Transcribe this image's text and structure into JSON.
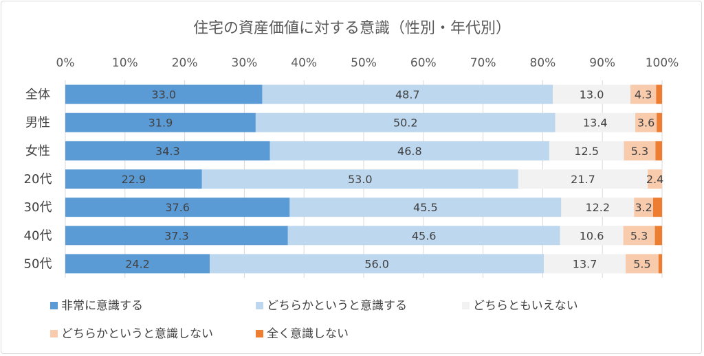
{
  "chart_data": {
    "type": "bar",
    "orientation": "horizontal",
    "stacked": "percent",
    "title": "住宅の資産価値に対する意識（性別・年代別）",
    "x_ticks": [
      "0%",
      "10%",
      "20%",
      "30%",
      "40%",
      "50%",
      "60%",
      "70%",
      "80%",
      "90%",
      "100%"
    ],
    "xlim": [
      0,
      100
    ],
    "grid": true,
    "legend_position": "bottom",
    "categories": [
      "全体",
      "男性",
      "女性",
      "20代",
      "30代",
      "40代",
      "50代"
    ],
    "series": [
      {
        "name": "非常に意識する",
        "color": "#5b9bd5",
        "values": [
          33.0,
          31.9,
          34.3,
          22.9,
          37.6,
          37.3,
          24.2
        ],
        "labels": [
          "33.0",
          "31.9",
          "34.3",
          "22.9",
          "37.6",
          "37.3",
          "24.2"
        ]
      },
      {
        "name": "どちらかというと意識する",
        "color": "#bdd7ee",
        "values": [
          48.7,
          50.2,
          46.8,
          53.0,
          45.5,
          45.6,
          56.0
        ],
        "labels": [
          "48.7",
          "50.2",
          "46.8",
          "53.0",
          "45.5",
          "45.6",
          "56.0"
        ]
      },
      {
        "name": "どちらともいえない",
        "color": "#f2f2f2",
        "values": [
          13.0,
          13.4,
          12.5,
          21.7,
          12.2,
          10.6,
          13.7
        ],
        "labels": [
          "13.0",
          "13.4",
          "12.5",
          "21.7",
          "12.2",
          "10.6",
          "13.7"
        ]
      },
      {
        "name": "どちらかというと意識しない",
        "color": "#f8cbad",
        "values": [
          4.3,
          3.6,
          5.3,
          2.4,
          3.2,
          5.3,
          5.5
        ],
        "labels": [
          "4.3",
          "3.6",
          "5.3",
          "2.4",
          "3.2",
          "5.3",
          "5.5"
        ]
      },
      {
        "name": "全く意識しない",
        "color": "#ed7d31",
        "values": [
          1.0,
          0.9,
          1.1,
          0.0,
          1.5,
          1.2,
          0.6
        ],
        "labels": [
          "",
          "",
          "",
          "",
          "",
          "",
          ""
        ]
      }
    ]
  }
}
